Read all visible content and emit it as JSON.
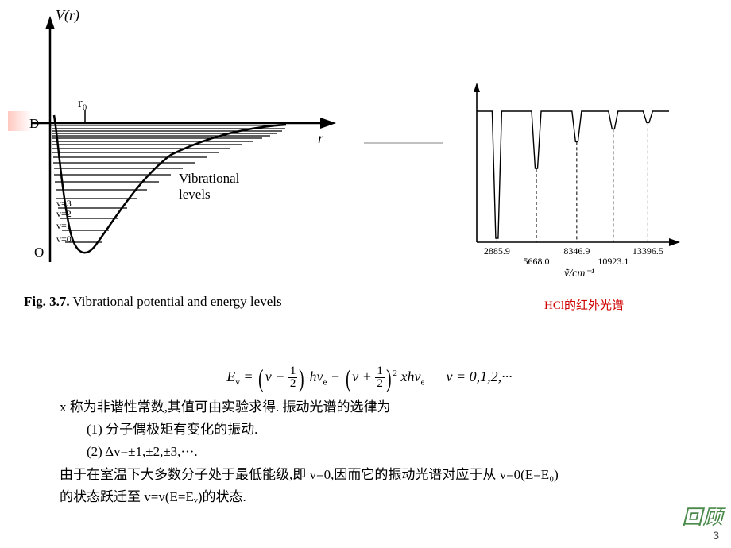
{
  "potential_diagram": {
    "y_axis_label": "V(r)",
    "x_axis_label": "r",
    "D_label": "D",
    "O_label": "O",
    "r0_label": "r₀",
    "levels_label": "Vibrational\nlevels",
    "v_labels": [
      "v=3",
      "v=2",
      "v=1",
      "v=0"
    ],
    "colors": {
      "stroke": "#000000",
      "bg": "#ffffff"
    }
  },
  "connector": {},
  "spectrum": {
    "caption": "HCl的红外光谱",
    "x_axis_label": "ṽ/cm⁻¹",
    "peaks": [
      {
        "x": 0.105,
        "depth": 1.0,
        "label": "2885.9",
        "label_row": 0
      },
      {
        "x": 0.31,
        "depth": 0.45,
        "label": "5668.0",
        "label_row": 1
      },
      {
        "x": 0.52,
        "depth": 0.24,
        "label": "8346.9",
        "label_row": 0
      },
      {
        "x": 0.71,
        "depth": 0.14,
        "label": "10923.1",
        "label_row": 1
      },
      {
        "x": 0.89,
        "depth": 0.09,
        "label": "13396.5",
        "label_row": 0
      }
    ],
    "colors": {
      "stroke": "#000000"
    }
  },
  "fig_caption_bold": "Fig. 3.7.",
  "fig_caption_rest": " Vibrational potential and energy levels",
  "equation": {
    "lhs": "E",
    "lhs_sub": "v",
    "eq": " = ",
    "v": "v",
    "plus": " + ",
    "half_num": "1",
    "half_den": "2",
    "h": "h",
    "nu": "ν",
    "nu_sub": "e",
    "minus": " − ",
    "sq": "2",
    "x": "x",
    "tail": "v = 0,1,2,···"
  },
  "text": {
    "line1": "x 称为非谐性常数,其值可由实验求得. 振动光谱的选律为",
    "rule1": "(1) 分子偶极矩有变化的振动.",
    "rule2": "(2) Δv=±1,±2,±3,···.",
    "line2a": "由于在室温下大多数分子处于最低能级,即 v=0,因而它的振动光谱对应于从 v=0(E=E₀)",
    "line2b": "的状态跃迁至 v=v(E=Eᵥ)的状态."
  },
  "slide_number": "3",
  "review": "回顾"
}
